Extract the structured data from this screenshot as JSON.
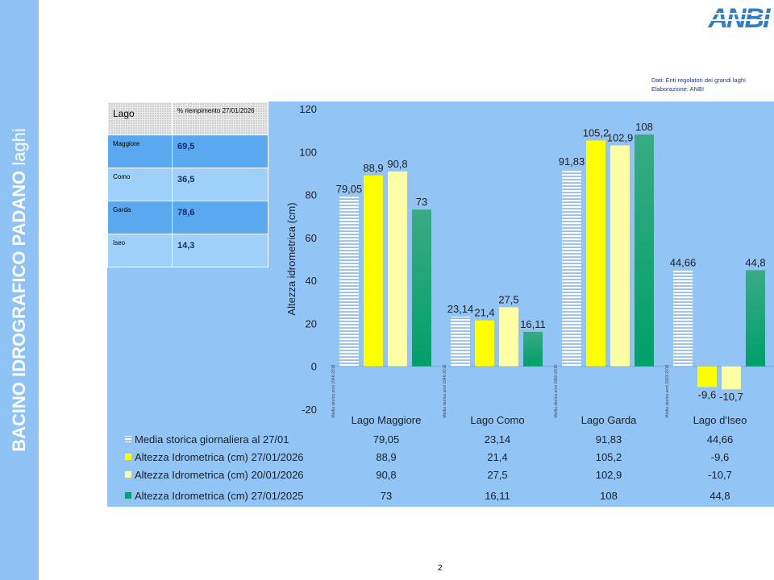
{
  "side_title": {
    "bold": "BACINO IDROGRAFICO PADANO",
    "regular": "laghi"
  },
  "logo_text": "ANBI",
  "source": {
    "line1": "Dati: Enti regolatori dei grandi laghi",
    "line2": "Elaborazione: ANBI"
  },
  "table": {
    "header_lake": "Lago",
    "header_fill": "% riempimento 27/01/2026",
    "rows": [
      {
        "name": "Maggiore",
        "value": "69,5"
      },
      {
        "name": "Como",
        "value": "36,5"
      },
      {
        "name": "Garda",
        "value": "78,6"
      },
      {
        "name": "Iseo",
        "value": "14,3"
      }
    ]
  },
  "colors": {
    "panel": "#92c5f5",
    "table_dark": "#5aa9f0",
    "table_light": "#9fd0fa",
    "series_historic": "#ffffff",
    "series_2026_01_27": "#ffff00",
    "series_2026_01_20": "#ffffa3",
    "series_2025": "#00a270"
  },
  "chart_data": {
    "type": "bar",
    "ylabel": "Altezza idrometrica (cm)",
    "ylim": [
      -20,
      120
    ],
    "yticks": [
      -20,
      0,
      20,
      40,
      60,
      80,
      100,
      120
    ],
    "categories": [
      "Lago Maggiore",
      "Lago Como",
      "Lago Garda",
      "Lago d'Iseo"
    ],
    "period_notes": [
      "Media storica anni 1946-2018",
      "Media storica anni 1946-2018",
      "Media storica anni 1950-2015",
      "Media storica anni 1933-2018"
    ],
    "series": [
      {
        "name": "Media storica  giornaliera al 27/01",
        "values": [
          79.05,
          23.14,
          91.83,
          44.66
        ],
        "labels": [
          "79,05",
          "23,14",
          "91,83",
          "44,66"
        ]
      },
      {
        "name": "Altezza Idrometrica (cm) 27/01/2026",
        "values": [
          88.9,
          21.4,
          105.2,
          -9.6
        ],
        "labels": [
          "88,9",
          "21,4",
          "105,2",
          "-9,6"
        ]
      },
      {
        "name": "Altezza Idrometrica (cm) 20/01/2026",
        "values": [
          90.8,
          27.5,
          102.9,
          -10.7
        ],
        "labels": [
          "90,8",
          "27,5",
          "102,9",
          "-10,7"
        ]
      },
      {
        "name": "Altezza Idrometrica (cm) 27/01/2025",
        "values": [
          73,
          16.11,
          108,
          44.8
        ],
        "labels": [
          "73",
          "16,11",
          "108",
          "44,8"
        ]
      }
    ]
  },
  "page_number": "2"
}
